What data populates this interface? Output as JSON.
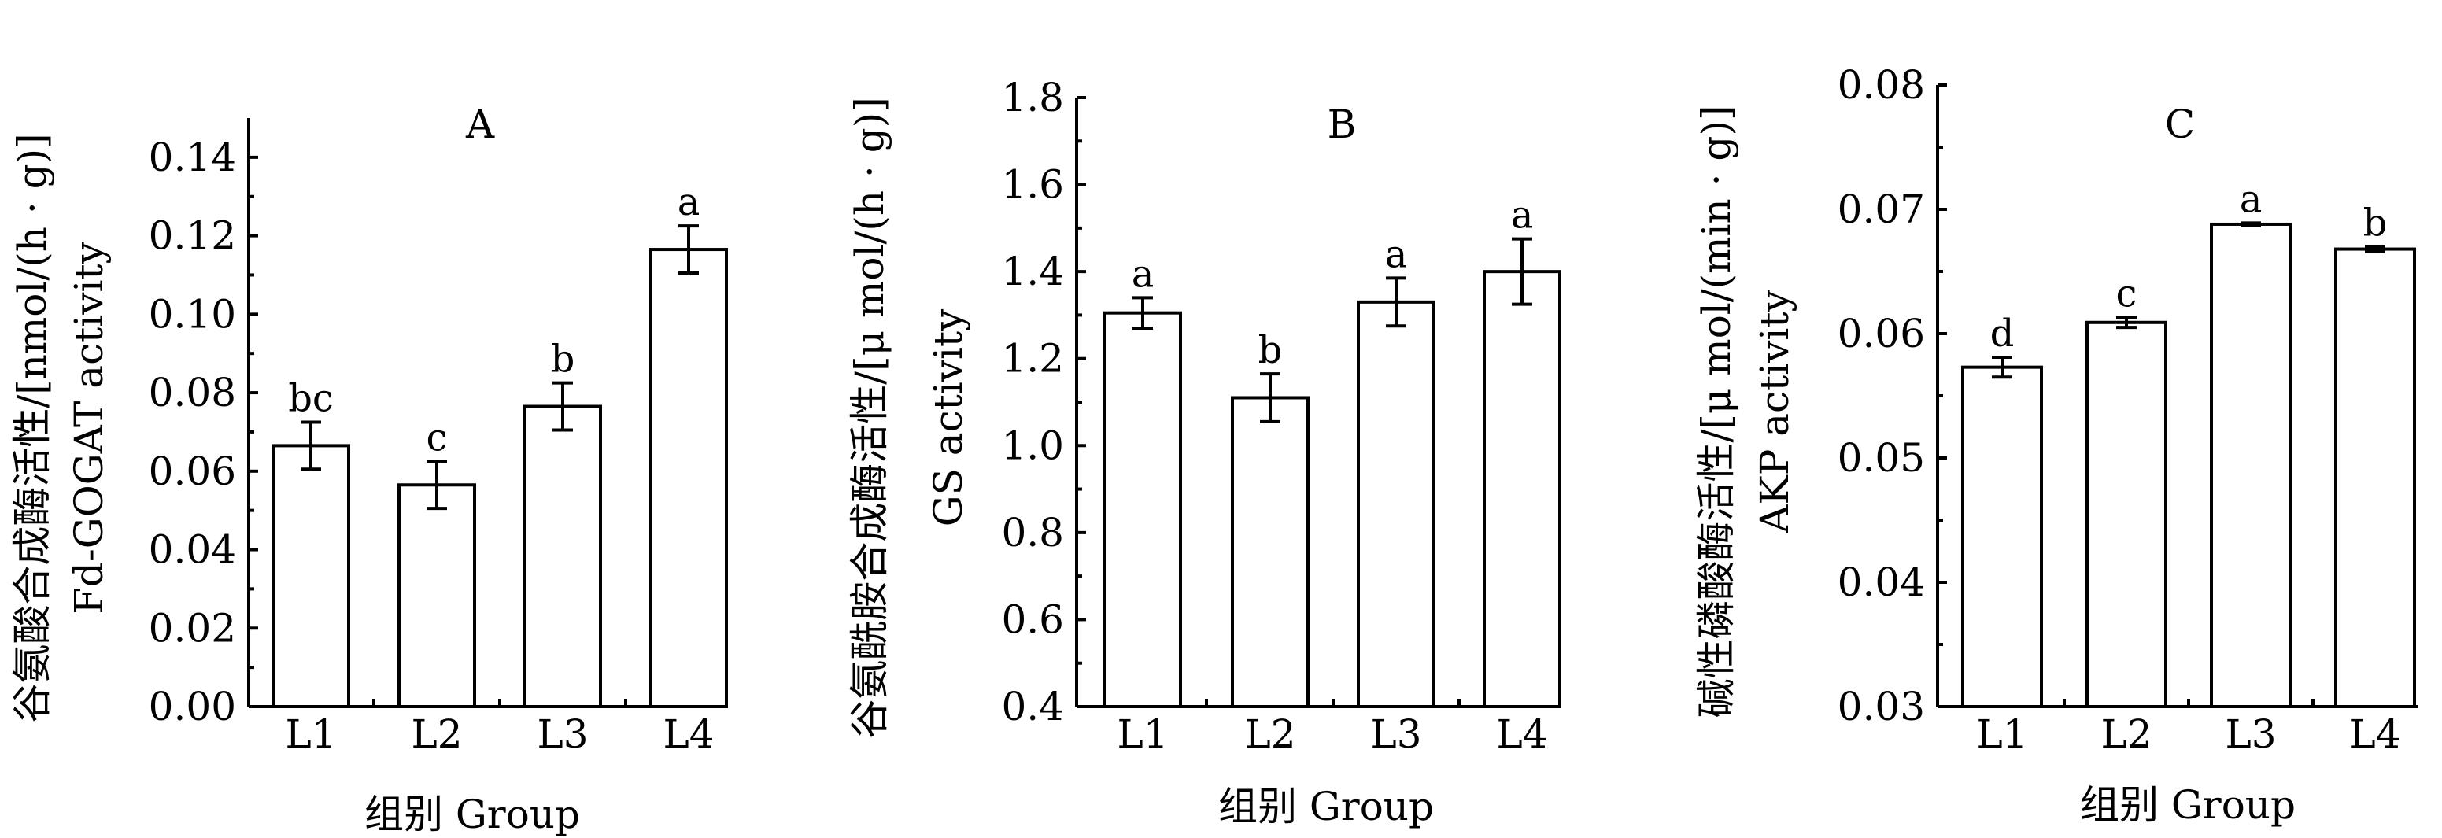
{
  "chart_data": [
    {
      "type": "bar",
      "panel": "A",
      "categories": [
        "L1",
        "L2",
        "L3",
        "L4"
      ],
      "values": [
        0.0665,
        0.0565,
        0.0765,
        0.1165
      ],
      "errors": [
        0.006,
        0.006,
        0.006,
        0.006
      ],
      "significance": [
        "bc",
        "c",
        "b",
        "a"
      ],
      "ylim": [
        0.0,
        0.15
      ],
      "yticks": [
        0.0,
        0.02,
        0.04,
        0.06,
        0.08,
        0.1,
        0.12,
        0.14
      ],
      "ytick_labels": [
        "0.00",
        "0.02",
        "0.04",
        "0.06",
        "0.08",
        "0.10",
        "0.12",
        "0.14"
      ],
      "ylabel_line1": "谷氨酸合成酶活性/[nmol/(h · g)]",
      "ylabel_line2": "Fd-GOGAT activity",
      "xlabel": "组别 Group"
    },
    {
      "type": "bar",
      "panel": "B",
      "categories": [
        "L1",
        "L2",
        "L3",
        "L4"
      ],
      "values": [
        1.305,
        1.11,
        1.33,
        1.4
      ],
      "errors": [
        0.035,
        0.055,
        0.055,
        0.075
      ],
      "significance": [
        "a",
        "b",
        "a",
        "a"
      ],
      "ylim": [
        0.4,
        1.8
      ],
      "yticks": [
        0.4,
        0.6,
        0.8,
        1.0,
        1.2,
        1.4,
        1.6,
        1.8
      ],
      "ytick_labels": [
        "0.4",
        "0.6",
        "0.8",
        "1.0",
        "1.2",
        "1.4",
        "1.6",
        "1.8"
      ],
      "ylabel_line1": "谷氨酰胺合成酶活性/[μ mol/(h · g)]",
      "ylabel_line2": "GS activity",
      "xlabel": "组别 Group"
    },
    {
      "type": "bar",
      "panel": "C",
      "categories": [
        "L1",
        "L2",
        "L3",
        "L4"
      ],
      "values": [
        0.0573,
        0.0609,
        0.0688,
        0.0668
      ],
      "errors": [
        0.0008,
        0.0004,
        0.0001,
        0.0002
      ],
      "significance": [
        "d",
        "c",
        "a",
        "b"
      ],
      "ylim": [
        0.03,
        0.08
      ],
      "yticks": [
        0.03,
        0.04,
        0.05,
        0.06,
        0.07,
        0.08
      ],
      "ytick_labels": [
        "0.03",
        "0.04",
        "0.05",
        "0.06",
        "0.07",
        "0.08"
      ],
      "ylabel_line1": "碱性磷酸酶活性/[μ mol/(min · g)]",
      "ylabel_line2": "AKP activity",
      "xlabel": "组别 Group"
    }
  ]
}
